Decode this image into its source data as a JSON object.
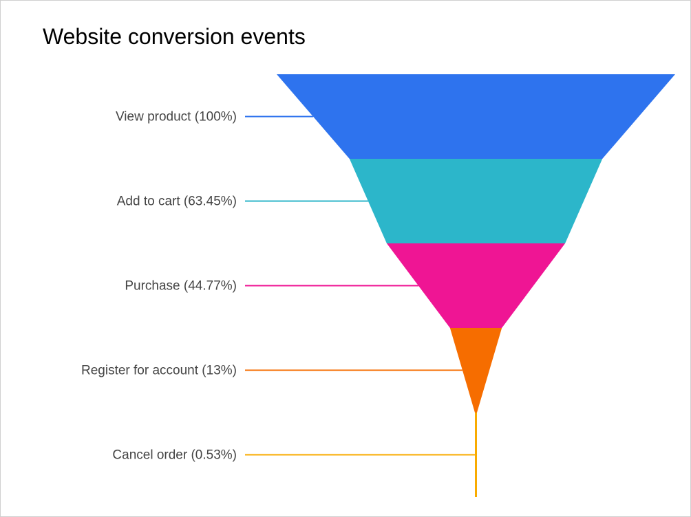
{
  "chart_data": {
    "type": "funnel",
    "title": "Website conversion events",
    "categories": [
      "View product",
      "Add to cart",
      "Purchase",
      "Register for account",
      "Cancel order"
    ],
    "values": [
      100,
      63.45,
      44.77,
      13,
      0.53
    ],
    "labels": [
      "View product (100%)",
      "Add to cart (63.45%)",
      "Purchase (44.77%)",
      "Register for account (13%)",
      "Cancel order (0.53%)"
    ],
    "colors": [
      "#2e73ee",
      "#2cb6ca",
      "#ef1594",
      "#f66d00",
      "#f9ab00"
    ],
    "legend": "none",
    "grid": false
  }
}
